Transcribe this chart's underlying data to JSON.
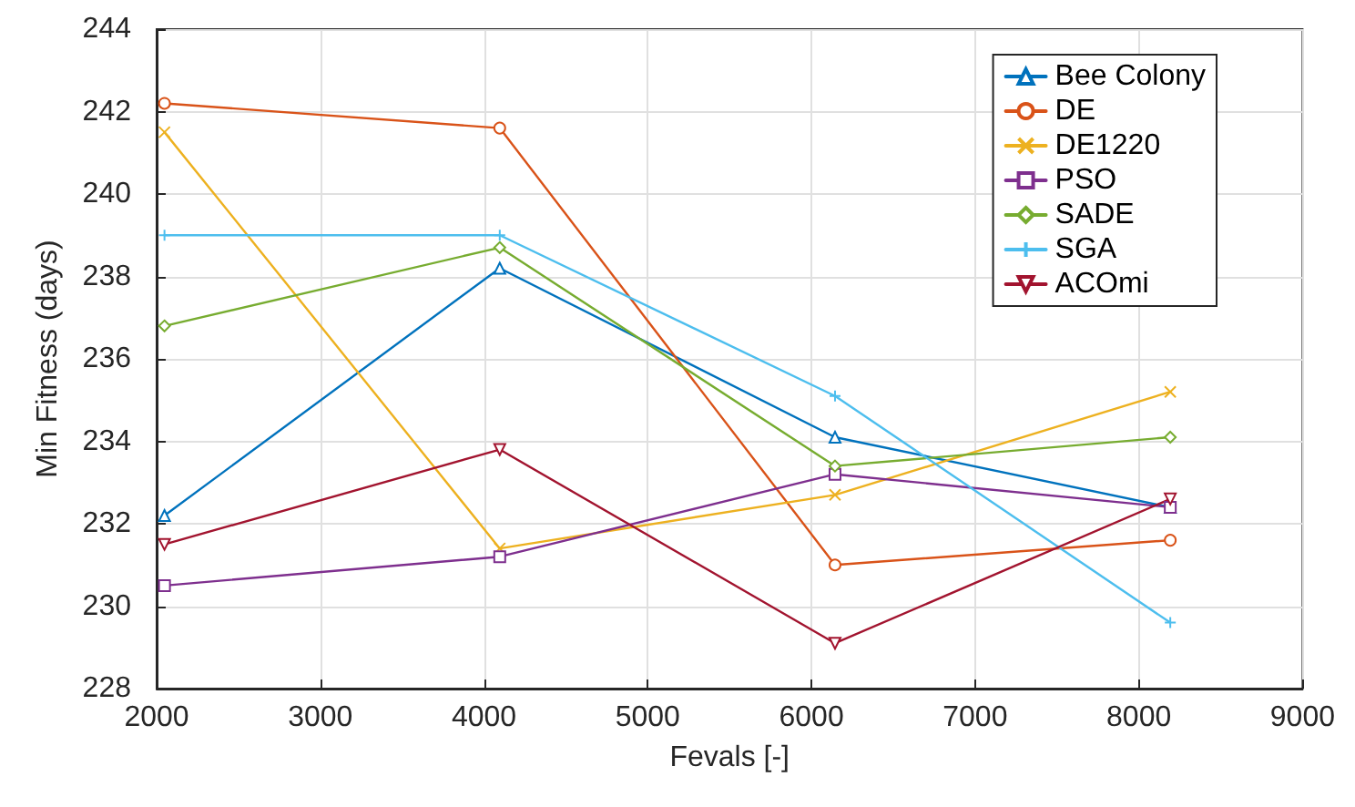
{
  "chart_data": {
    "type": "line",
    "xlabel": "Fevals [-]",
    "ylabel": "Min Fitness (days)",
    "x": [
      2048,
      4096,
      6144,
      8192
    ],
    "xlim": [
      2000,
      9000
    ],
    "xticks": [
      2000,
      3000,
      4000,
      5000,
      6000,
      7000,
      8000,
      9000
    ],
    "ylim": [
      228,
      244
    ],
    "yticks": [
      228,
      230,
      232,
      234,
      236,
      238,
      240,
      242,
      244
    ],
    "grid": true,
    "legend": "top right",
    "line_style": "solid",
    "series": [
      {
        "name": "Bee Colony",
        "color": "#0072bd",
        "marker": "triangle",
        "values": [
          232.2,
          238.2,
          234.1,
          232.4
        ]
      },
      {
        "name": "DE",
        "color": "#d95319",
        "marker": "circle",
        "values": [
          242.2,
          241.6,
          231.0,
          231.6
        ]
      },
      {
        "name": "DE1220",
        "color": "#edb120",
        "marker": "cross",
        "values": [
          241.5,
          231.4,
          232.7,
          235.2
        ]
      },
      {
        "name": "PSO",
        "color": "#7e2f8e",
        "marker": "square",
        "values": [
          230.5,
          231.2,
          233.2,
          232.4
        ]
      },
      {
        "name": "SADE",
        "color": "#77ac30",
        "marker": "diamond",
        "values": [
          236.8,
          238.7,
          233.4,
          234.1
        ]
      },
      {
        "name": "SGA",
        "color": "#4dbeee",
        "marker": "plus",
        "values": [
          239.0,
          239.0,
          235.1,
          229.6
        ]
      },
      {
        "name": "ACOmi",
        "color": "#a2142f",
        "marker": "triangle-down",
        "values": [
          231.5,
          233.8,
          229.1,
          232.6
        ]
      }
    ]
  }
}
